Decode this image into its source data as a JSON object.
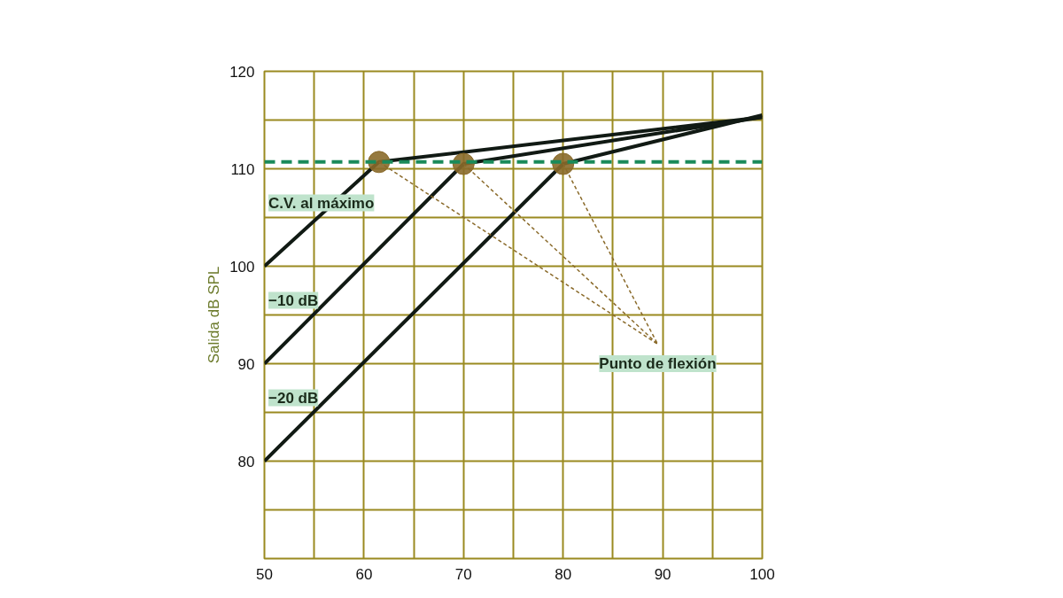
{
  "chart_data": {
    "type": "line",
    "ylabel": "Salida dB SPL",
    "xlim": [
      50,
      100
    ],
    "ylim": [
      70,
      120
    ],
    "xticks": [
      50,
      {
        "value": 55,
        "label": null
      },
      60,
      {
        "value": 65,
        "label": null
      },
      70,
      {
        "value": 75,
        "label": null
      },
      80,
      {
        "value": 85,
        "label": null
      },
      90,
      {
        "value": 95,
        "label": null
      },
      100
    ],
    "yticks": [
      {
        "value": 70,
        "label": null
      },
      {
        "value": 75,
        "label": null
      },
      80,
      {
        "value": 85,
        "label": null
      },
      90,
      {
        "value": 95,
        "label": null
      },
      100,
      {
        "value": 105,
        "label": null
      },
      110,
      {
        "value": 115,
        "label": null
      },
      120
    ],
    "grid": true,
    "line_style": "solid",
    "series": [
      {
        "name": "C.V. al máximo",
        "color": "#111a14",
        "x": [
          50,
          61.5,
          100
        ],
        "values": [
          100,
          110.7,
          115.3
        ]
      },
      {
        "name": "−10 dB",
        "color": "#111a14",
        "x": [
          50,
          70,
          100
        ],
        "values": [
          90,
          110.5,
          115.3
        ]
      },
      {
        "name": "−20 dB",
        "color": "#111a14",
        "x": [
          50,
          80,
          100
        ],
        "values": [
          80,
          110.5,
          115.5
        ]
      },
      {
        "type": "scatter",
        "color": "#8a6a2a",
        "marker": "circle",
        "x": [
          61.5,
          70,
          80
        ],
        "values": [
          110.7,
          110.5,
          110.5
        ]
      }
    ],
    "ref_lines": [
      {
        "axis": "y",
        "value": 110.7,
        "color": "#1a8a5a",
        "line_style": "dashed"
      }
    ],
    "annotations": [
      "Punto de flexión"
    ]
  }
}
